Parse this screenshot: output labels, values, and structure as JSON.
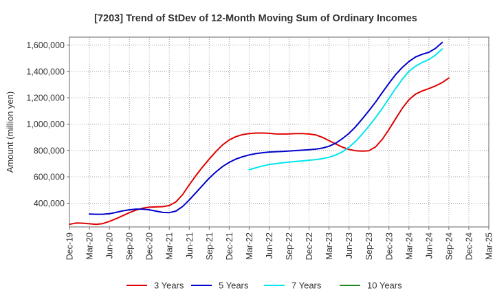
{
  "chart_data": {
    "type": "line",
    "title": "[7203]  Trend of StDev of 12-Month Moving Sum of Ordinary Incomes",
    "ylabel": "Amount (million yen)",
    "xlabel": "",
    "x_ticks": [
      "Dec-19",
      "Mar-20",
      "Jun-20",
      "Sep-20",
      "Dec-20",
      "Mar-21",
      "Jun-21",
      "Sep-21",
      "Dec-21",
      "Mar-22",
      "Jun-22",
      "Sep-22",
      "Dec-22",
      "Mar-23",
      "Jun-23",
      "Sep-23",
      "Dec-23",
      "Mar-24",
      "Jun-24",
      "Sep-24",
      "Dec-24",
      "Mar-25"
    ],
    "y_ticks": [
      400000,
      600000,
      800000,
      1000000,
      1200000,
      1400000,
      1600000
    ],
    "y_tick_labels": [
      "400,000",
      "600,000",
      "800,000",
      "1,000,000",
      "1,200,000",
      "1,400,000",
      "1,600,000"
    ],
    "ylim": [
      220000,
      1660000
    ],
    "grid": true,
    "legend_position": "bottom",
    "series": [
      {
        "name": "3 Years",
        "color": "#e00000",
        "start_index": 0,
        "values": [
          240000,
          250000,
          248000,
          244000,
          240000,
          245000,
          262000,
          282000,
          305000,
          328000,
          348000,
          362000,
          370000,
          372000,
          374000,
          382000,
          410000,
          465000,
          540000,
          610000,
          675000,
          735000,
          792000,
          842000,
          880000,
          905000,
          920000,
          928000,
          932000,
          932000,
          930000,
          926000,
          925000,
          926000,
          928000,
          928000,
          925000,
          918000,
          900000,
          875000,
          850000,
          825000,
          808000,
          798000,
          795000,
          798000,
          828000,
          885000,
          960000,
          1040000,
          1120000,
          1185000,
          1228000,
          1252000,
          1270000,
          1290000,
          1315000,
          1350000
        ]
      },
      {
        "name": "5 Years",
        "color": "#0000cc",
        "start_index": 3,
        "values": [
          318000,
          316000,
          316000,
          320000,
          330000,
          342000,
          350000,
          355000,
          355000,
          350000,
          340000,
          330000,
          328000,
          340000,
          375000,
          425000,
          480000,
          535000,
          590000,
          637000,
          678000,
          710000,
          735000,
          752000,
          766000,
          776000,
          783000,
          788000,
          791000,
          793000,
          796000,
          799000,
          802000,
          806000,
          810000,
          818000,
          832000,
          855000,
          890000,
          930000,
          980000,
          1040000,
          1102000,
          1168000,
          1240000,
          1310000,
          1375000,
          1430000,
          1475000,
          1510000,
          1530000,
          1545000,
          1575000,
          1620000
        ]
      },
      {
        "name": "7 Years",
        "color": "#00e5ee",
        "start_index": 27,
        "values": [
          655000,
          668000,
          683000,
          693000,
          700000,
          706000,
          712000,
          717000,
          721000,
          726000,
          731000,
          738000,
          748000,
          765000,
          790000,
          825000,
          870000,
          925000,
          985000,
          1050000,
          1120000,
          1195000,
          1270000,
          1340000,
          1400000,
          1440000,
          1468000,
          1490000,
          1525000,
          1570000
        ]
      },
      {
        "name": "10 Years",
        "color": "#228b22",
        "start_index": 0,
        "values": []
      }
    ]
  }
}
